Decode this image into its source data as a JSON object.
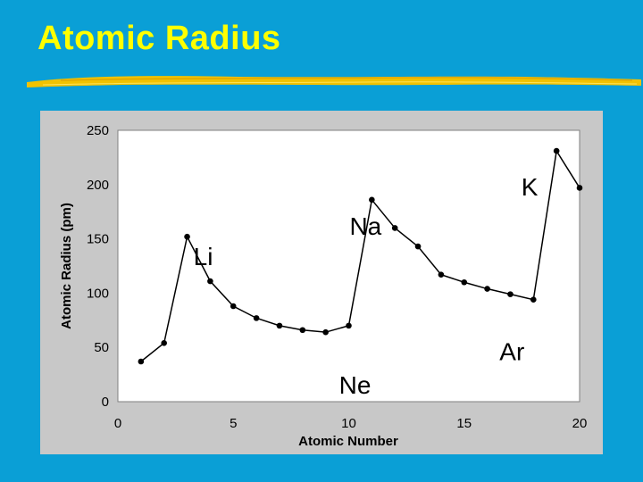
{
  "slide": {
    "title": "Atomic Radius",
    "colors": {
      "background": "#0a9fd6",
      "title": "#ffff00",
      "underline": "#f2c200",
      "chart_panel": "#c8c8c8",
      "plot_area": "#ffffff"
    }
  },
  "chart_data": {
    "type": "line",
    "title": "",
    "xlabel": "Atomic Number",
    "ylabel": "Atomic Radius (pm)",
    "xlim": [
      0,
      20
    ],
    "ylim": [
      0,
      250
    ],
    "xticks": [
      0,
      5,
      10,
      15,
      20
    ],
    "yticks": [
      0,
      50,
      100,
      150,
      200,
      250
    ],
    "grid": false,
    "legend": "none",
    "series": [
      {
        "x": [
          1,
          2,
          3,
          4,
          5,
          6,
          7,
          8,
          9,
          10,
          11,
          12,
          13,
          14,
          15,
          16,
          17,
          18,
          19,
          20
        ],
        "y": [
          37,
          54,
          152,
          111,
          88,
          77,
          70,
          66,
          64,
          70,
          186,
          160,
          143,
          117,
          110,
          104,
          99,
          94,
          231,
          197
        ]
      }
    ],
    "annotations": [
      {
        "text": "Li",
        "x": 3
      },
      {
        "text": "Ne",
        "x": 10
      },
      {
        "text": "Na",
        "x": 11
      },
      {
        "text": "Ar",
        "x": 18
      },
      {
        "text": "K",
        "x": 19
      }
    ]
  }
}
